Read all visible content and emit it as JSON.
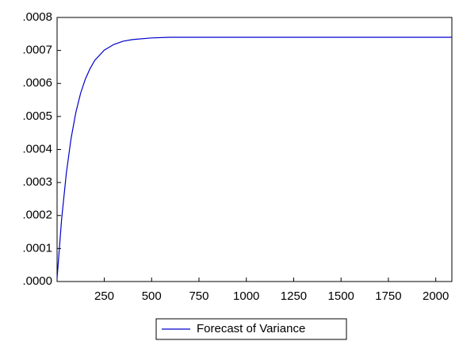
{
  "chart_data": {
    "type": "line",
    "x": [
      1,
      25,
      50,
      75,
      100,
      125,
      150,
      175,
      200,
      250,
      300,
      350,
      400,
      500,
      600,
      800,
      1000,
      1500,
      2085
    ],
    "series": [
      {
        "name": "Forecast of Variance",
        "color": "#0000cc",
        "values": [
          1e-05,
          0.000189,
          0.000329,
          0.000434,
          0.000512,
          0.00057,
          0.000613,
          0.000645,
          0.00067,
          0.000701,
          0.000718,
          0.000728,
          0.000733,
          0.000738,
          0.00074,
          0.00074,
          0.00074,
          0.00074,
          0.00074
        ]
      }
    ],
    "xlim": [
      1,
      2085
    ],
    "xticks": [
      250,
      500,
      750,
      1000,
      1250,
      1500,
      1750,
      2000
    ],
    "ylim": [
      0,
      0.0008
    ],
    "yticks": [
      {
        "value": 0,
        "label": ".0000"
      },
      {
        "value": 0.0001,
        "label": ".0001"
      },
      {
        "value": 0.0002,
        "label": ".0002"
      },
      {
        "value": 0.0003,
        "label": ".0003"
      },
      {
        "value": 0.0004,
        "label": ".0004"
      },
      {
        "value": 0.0005,
        "label": ".0005"
      },
      {
        "value": 0.0006,
        "label": ".0006"
      },
      {
        "value": 0.0007,
        "label": ".0007"
      },
      {
        "value": 0.0008,
        "label": ".0008"
      }
    ],
    "legend": "bottom"
  }
}
